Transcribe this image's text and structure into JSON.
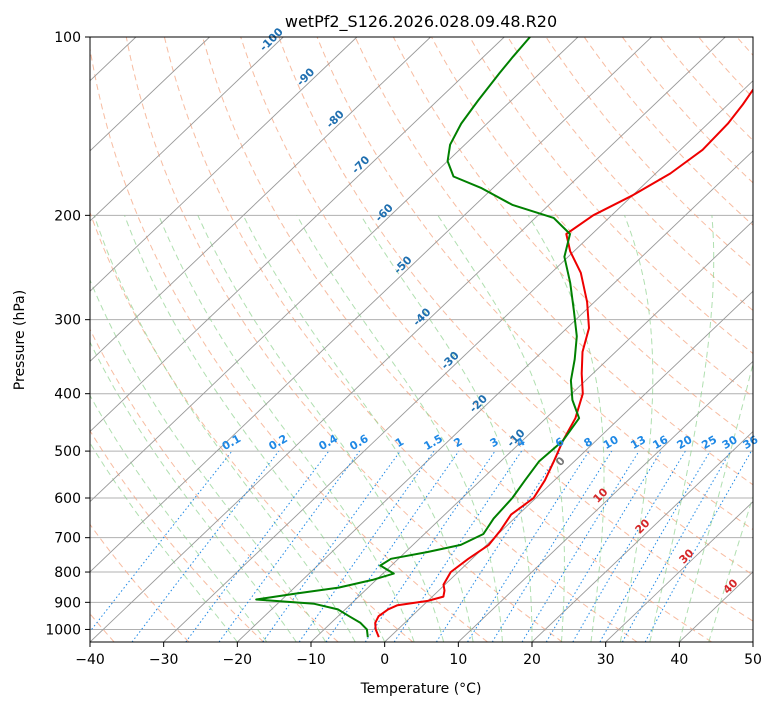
{
  "chart_data": {
    "type": "line",
    "title": "wetPf2_S126.2026.028.09.48.R20",
    "xlabel": "Temperature (°C)",
    "ylabel": "Pressure (hPa)",
    "xlim": [
      -40,
      50
    ],
    "ylim": [
      1050,
      100
    ],
    "y_scale": "log",
    "grid": true,
    "x_ticks": [
      -40,
      -30,
      -20,
      -10,
      0,
      10,
      20,
      30,
      40,
      50
    ],
    "y_ticks": [
      100,
      200,
      300,
      400,
      500,
      600,
      700,
      800,
      900,
      1000
    ],
    "isotherm_labels": [
      "-100",
      "-90",
      "-80",
      "-70",
      "-60",
      "-50",
      "-40",
      "-30",
      "-20",
      "-10"
    ],
    "mixing_ratio_labels": [
      "0.1",
      "0.2",
      "0.4",
      "0.6",
      "1",
      "1.5",
      "2",
      "3",
      "4",
      "6",
      "8",
      "10",
      "13",
      "16",
      "20",
      "25",
      "30",
      "36"
    ],
    "moist_adiabat_labels": [
      "0",
      "10",
      "20",
      "30",
      "40"
    ],
    "colors": {
      "temperature": "#ee0000",
      "dewpoint": "#008000",
      "isotherm": "#999999",
      "dry_adiabat": "#f4a582",
      "moist_adiabat": "#8fd18f",
      "mixing_ratio": "#1e88e5",
      "isotherm_label": "#1f6fb0",
      "moist_label": "#d62728"
    },
    "series": [
      {
        "name": "",
        "kind": "temperature",
        "points": [
          {
            "p": 1030,
            "t": -1.5
          },
          {
            "p": 1000,
            "t": -3.0
          },
          {
            "p": 975,
            "t": -4.0
          },
          {
            "p": 950,
            "t": -4.5
          },
          {
            "p": 925,
            "t": -4.2
          },
          {
            "p": 910,
            "t": -3.5
          },
          {
            "p": 895,
            "t": 0.0
          },
          {
            "p": 880,
            "t": 1.5
          },
          {
            "p": 860,
            "t": 0.8
          },
          {
            "p": 840,
            "t": -0.2
          },
          {
            "p": 800,
            "t": -1.0
          },
          {
            "p": 760,
            "t": -0.5
          },
          {
            "p": 720,
            "t": 0.3
          },
          {
            "p": 680,
            "t": -0.2
          },
          {
            "p": 640,
            "t": -1.0
          },
          {
            "p": 600,
            "t": -0.3
          },
          {
            "p": 560,
            "t": -1.3
          },
          {
            "p": 520,
            "t": -2.8
          },
          {
            "p": 480,
            "t": -4.5
          },
          {
            "p": 440,
            "t": -6.0
          },
          {
            "p": 400,
            "t": -8.5
          },
          {
            "p": 370,
            "t": -11.5
          },
          {
            "p": 340,
            "t": -14.5
          },
          {
            "p": 310,
            "t": -17.0
          },
          {
            "p": 280,
            "t": -21.0
          },
          {
            "p": 250,
            "t": -26.0
          },
          {
            "p": 230,
            "t": -30.5
          },
          {
            "p": 215,
            "t": -33.5
          },
          {
            "p": 200,
            "t": -32.5
          },
          {
            "p": 185,
            "t": -30.0
          },
          {
            "p": 170,
            "t": -28.0
          },
          {
            "p": 155,
            "t": -27.0
          },
          {
            "p": 140,
            "t": -27.3
          },
          {
            "p": 130,
            "t": -28.0
          },
          {
            "p": 120,
            "t": -29.0
          },
          {
            "p": 110,
            "t": -30.0
          },
          {
            "p": 100,
            "t": -31.0
          }
        ]
      },
      {
        "name": "",
        "kind": "dewpoint",
        "points": [
          {
            "p": 1030,
            "t": -3.0
          },
          {
            "p": 1000,
            "t": -4.2
          },
          {
            "p": 975,
            "t": -6.0
          },
          {
            "p": 950,
            "t": -8.5
          },
          {
            "p": 925,
            "t": -11.0
          },
          {
            "p": 905,
            "t": -15.0
          },
          {
            "p": 890,
            "t": -23.5
          },
          {
            "p": 870,
            "t": -19.0
          },
          {
            "p": 850,
            "t": -14.0
          },
          {
            "p": 825,
            "t": -10.5
          },
          {
            "p": 805,
            "t": -8.5
          },
          {
            "p": 780,
            "t": -11.5
          },
          {
            "p": 760,
            "t": -11.0
          },
          {
            "p": 740,
            "t": -7.0
          },
          {
            "p": 720,
            "t": -3.5
          },
          {
            "p": 690,
            "t": -2.0
          },
          {
            "p": 650,
            "t": -2.8
          },
          {
            "p": 600,
            "t": -3.2
          },
          {
            "p": 560,
            "t": -4.0
          },
          {
            "p": 520,
            "t": -4.8
          },
          {
            "p": 480,
            "t": -4.5
          },
          {
            "p": 440,
            "t": -5.5
          },
          {
            "p": 410,
            "t": -9.0
          },
          {
            "p": 380,
            "t": -12.0
          },
          {
            "p": 350,
            "t": -14.5
          },
          {
            "p": 320,
            "t": -17.5
          },
          {
            "p": 290,
            "t": -21.5
          },
          {
            "p": 260,
            "t": -26.0
          },
          {
            "p": 235,
            "t": -30.5
          },
          {
            "p": 215,
            "t": -33.0
          },
          {
            "p": 202,
            "t": -37.5
          },
          {
            "p": 192,
            "t": -45.0
          },
          {
            "p": 180,
            "t": -51.5
          },
          {
            "p": 172,
            "t": -57.0
          },
          {
            "p": 162,
            "t": -60.0
          },
          {
            "p": 152,
            "t": -62.0
          },
          {
            "p": 140,
            "t": -63.5
          },
          {
            "p": 128,
            "t": -64.5
          },
          {
            "p": 115,
            "t": -65.5
          },
          {
            "p": 108,
            "t": -66.0
          },
          {
            "p": 100,
            "t": -66.5
          }
        ]
      }
    ]
  }
}
